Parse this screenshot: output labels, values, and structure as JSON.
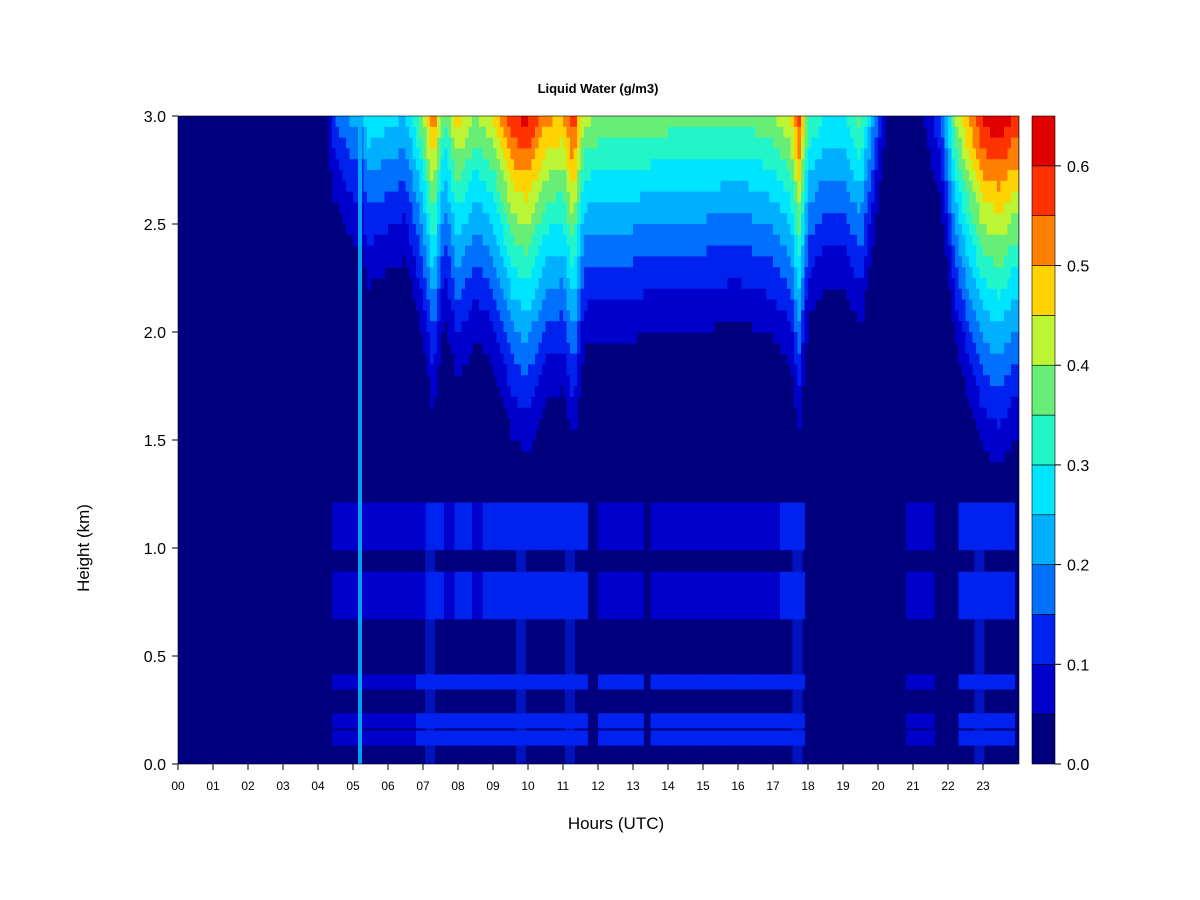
{
  "chart_data": {
    "type": "heatmap",
    "title": "Liquid Water (g/m3)",
    "xlabel": "Hours (UTC)",
    "ylabel": "Height (km)",
    "xlim": [
      0,
      24
    ],
    "ylim": [
      0,
      3.0
    ],
    "x_tick_labels": [
      "00",
      "01",
      "02",
      "03",
      "04",
      "05",
      "06",
      "07",
      "08",
      "09",
      "10",
      "11",
      "12",
      "13",
      "14",
      "15",
      "16",
      "17",
      "18",
      "19",
      "20",
      "21",
      "22",
      "23"
    ],
    "y_tick_labels": [
      "0.0",
      "0.5",
      "1.0",
      "1.5",
      "2.0",
      "2.5",
      "3.0"
    ],
    "colorbar": {
      "range": [
        0,
        0.65
      ],
      "levels": [
        0,
        0.05,
        0.1,
        0.15,
        0.2,
        0.25,
        0.3,
        0.35,
        0.4,
        0.45,
        0.5,
        0.55,
        0.6,
        0.65
      ],
      "colors": [
        "#00007f",
        "#0000cc",
        "#0022ee",
        "#0070ff",
        "#00b0ff",
        "#00e5ff",
        "#22f5c8",
        "#66ee77",
        "#bbf533",
        "#ffd300",
        "#ff8000",
        "#ff3300",
        "#e00000",
        "#800000"
      ],
      "tick_labels": [
        "0.0",
        "0.1",
        "0.2",
        "0.3",
        "0.4",
        "0.5",
        "0.6"
      ]
    },
    "profile": {
      "hours": [
        0,
        4.2,
        4.4,
        5.0,
        5.25,
        5.4,
        6.5,
        7.0,
        7.3,
        7.6,
        8.0,
        8.5,
        9.0,
        9.6,
        10.0,
        10.5,
        11.0,
        11.3,
        11.6,
        12.0,
        13.0,
        14.0,
        15.0,
        16.0,
        16.5,
        17.0,
        17.5,
        17.75,
        18.0,
        18.5,
        19.0,
        19.5,
        19.8,
        20.2,
        20.8,
        21.3,
        21.8,
        22.2,
        22.6,
        23.0,
        23.5,
        23.85
      ],
      "top_liquid_water": [
        0,
        0,
        0.14,
        0.22,
        0.22,
        0.3,
        0.25,
        0.4,
        0.55,
        0.35,
        0.48,
        0.4,
        0.45,
        0.6,
        0.62,
        0.52,
        0.5,
        0.6,
        0.42,
        0.4,
        0.4,
        0.38,
        0.38,
        0.37,
        0.38,
        0.4,
        0.45,
        0.58,
        0.36,
        0.3,
        0.3,
        0.38,
        0.25,
        0.05,
        0.02,
        0.05,
        0.15,
        0.4,
        0.52,
        0.62,
        0.65,
        0.6
      ]
    },
    "low_level_bands_km": [
      0.12,
      0.2,
      0.38,
      0.78,
      1.1
    ],
    "notable_features": [
      {
        "hour": 5.2,
        "label": "narrow column"
      },
      {
        "hour": 7.2,
        "label": "column"
      },
      {
        "hour": 9.8,
        "label": "column"
      },
      {
        "hour": 11.2,
        "label": "column"
      },
      {
        "hour": 17.7,
        "label": "column"
      },
      {
        "hour": 22.9,
        "label": "column"
      }
    ]
  }
}
